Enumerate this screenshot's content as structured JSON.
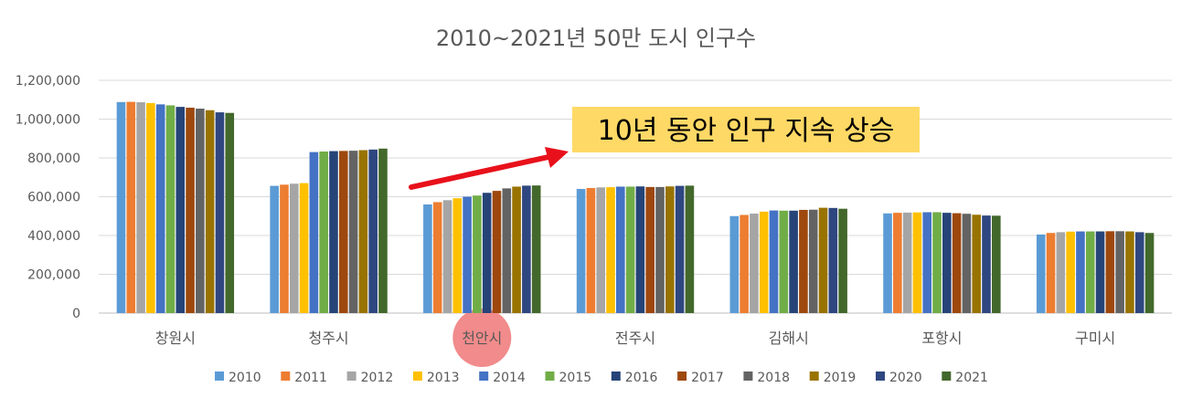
{
  "chart_data": {
    "type": "bar",
    "title": "2010~2021년 50만 도시 인구수",
    "xlabel": "",
    "ylabel": "",
    "ylim": [
      0,
      1200000
    ],
    "yticks": [
      "0",
      "200,000",
      "400,000",
      "600,000",
      "800,000",
      "1,000,000",
      "1,200,000"
    ],
    "ytick_values": [
      0,
      200000,
      400000,
      600000,
      800000,
      1000000,
      1200000
    ],
    "grid": true,
    "legend_position": "bottom",
    "categories": [
      "창원시",
      "청주시",
      "천안시",
      "전주시",
      "김해시",
      "포항시",
      "구미시"
    ],
    "highlight_category": "천안시",
    "highlight_color": "#f28b8b",
    "annotation": {
      "text": "10년 동안 인구 지속 상승",
      "box_color": "#ffd966",
      "arrow_color": "#e8111b"
    },
    "series": [
      {
        "name": "2010",
        "color": "#5b9bd5",
        "values": [
          1088000,
          656000,
          560000,
          640000,
          500000,
          514000,
          405000
        ]
      },
      {
        "name": "2011",
        "color": "#ed7d31",
        "values": [
          1089000,
          662000,
          572000,
          645000,
          506000,
          517000,
          413000
        ]
      },
      {
        "name": "2012",
        "color": "#a5a5a5",
        "values": [
          1087000,
          667000,
          582000,
          648000,
          513000,
          518000,
          417000
        ]
      },
      {
        "name": "2013",
        "color": "#ffc000",
        "values": [
          1083000,
          670000,
          592000,
          649000,
          523000,
          519000,
          420000
        ]
      },
      {
        "name": "2014",
        "color": "#4472c4",
        "values": [
          1076000,
          830000,
          600000,
          652000,
          529000,
          520000,
          421000
        ]
      },
      {
        "name": "2015",
        "color": "#70ad47",
        "values": [
          1071000,
          833000,
          606000,
          652000,
          528000,
          520000,
          421000
        ]
      },
      {
        "name": "2016",
        "color": "#264478",
        "values": [
          1063000,
          835000,
          620000,
          653000,
          528000,
          517000,
          421000
        ]
      },
      {
        "name": "2017",
        "color": "#9e480e",
        "values": [
          1059000,
          836000,
          630000,
          650000,
          532000,
          515000,
          422000
        ]
      },
      {
        "name": "2018",
        "color": "#636363",
        "values": [
          1054000,
          837000,
          643000,
          650000,
          533000,
          512000,
          422000
        ]
      },
      {
        "name": "2019",
        "color": "#997300",
        "values": [
          1046000,
          840000,
          652000,
          653000,
          543000,
          507000,
          421000
        ]
      },
      {
        "name": "2020",
        "color": "#2f4780",
        "values": [
          1035000,
          843000,
          657000,
          656000,
          542000,
          503000,
          417000
        ]
      },
      {
        "name": "2021",
        "color": "#43682b",
        "values": [
          1032000,
          848000,
          658000,
          657000,
          538000,
          502000,
          413000
        ]
      }
    ]
  }
}
